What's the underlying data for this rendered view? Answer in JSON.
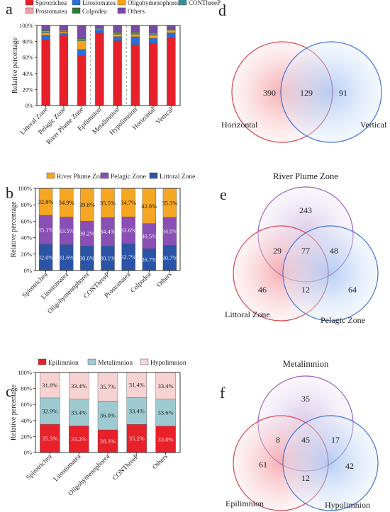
{
  "panel_labels": [
    "a",
    "b",
    "c",
    "d",
    "e",
    "f"
  ],
  "colors": {
    "Spirotrichea": "#e8202a",
    "Litostomatea": "#2a6ed8",
    "Oligohymenophorea": "#f5a31a",
    "CONThreeP": "#3c8f9a",
    "Prostomatea": "#f0a0a8",
    "Colpodea": "#2e7a3a",
    "Others": "#7b4aa8",
    "river": "#f5a623",
    "pelagic": "#8a4fb5",
    "littoral": "#2b54a6",
    "epi": "#e8202a",
    "meta": "#9ecbd1",
    "hypo": "#f7d2d2"
  },
  "chart_data": [
    {
      "id": "a",
      "type": "bar",
      "stacked": true,
      "ylabel": "Relative percentage",
      "ylim": [
        0,
        100
      ],
      "yticks": [
        "0%",
        "20%",
        "40%",
        "60%",
        "80%",
        "100%"
      ],
      "categories": [
        "Littoral Zone",
        "Pelagic Zone",
        "River Plume Zone",
        "Epilimnion",
        "Metalimnion",
        "Hypolimnion",
        "Horizontal",
        "Vertical"
      ],
      "legend": [
        "Spirotrichea",
        "Litostomatea",
        "Oligohymenophorea",
        "CONThreeP",
        "Prostomatea",
        "Colpodea",
        "Others"
      ],
      "series": [
        {
          "name": "Spirotrichea",
          "values": [
            82,
            87,
            62,
            91,
            81,
            76,
            78,
            85
          ]
        },
        {
          "name": "Litostomatea",
          "values": [
            6,
            3,
            8,
            4,
            5,
            10,
            6,
            6
          ]
        },
        {
          "name": "Oligohymenophorea",
          "values": [
            3,
            2,
            11,
            1,
            3,
            3,
            4,
            3
          ]
        },
        {
          "name": "CONThreeP",
          "values": [
            1,
            1,
            1,
            1,
            1,
            1,
            1,
            1
          ]
        },
        {
          "name": "Prostomatea",
          "values": [
            1,
            1,
            1,
            0.5,
            1,
            1,
            1,
            0.5
          ]
        },
        {
          "name": "Colpodea",
          "values": [
            1,
            1,
            1,
            0.5,
            1,
            1,
            1,
            0.5
          ]
        },
        {
          "name": "Others",
          "values": [
            6,
            5,
            16,
            2,
            8,
            8,
            9,
            4
          ]
        }
      ]
    },
    {
      "id": "b",
      "type": "bar",
      "stacked": true,
      "ylabel": "Relative percentage",
      "ylim": [
        0,
        100
      ],
      "yticks": [
        "0%",
        "20%",
        "40%",
        "60%",
        "80%",
        "100%"
      ],
      "categories": [
        "Spirotrichea",
        "Litostomatea",
        "Oligohymenophorea",
        "CONThreeP",
        "Prostomatea",
        "Colpodea",
        "Others"
      ],
      "legend": [
        "River Plume Zone",
        "Pelagic Zone",
        "Littoral Zone"
      ],
      "series": [
        {
          "name": "Littoral Zone",
          "values": [
            32.0,
            31.6,
            30.0,
            30.1,
            32.7,
            26.7,
            30.7
          ],
          "labels": [
            "32.0%",
            "31.6%",
            "30.0%",
            "30.1%",
            "32.7%",
            "26.7%",
            "30.7%"
          ]
        },
        {
          "name": "Pelagic Zone",
          "values": [
            35.1,
            33.5,
            30.2,
            34.4,
            32.6,
            30.5,
            34.0
          ],
          "labels": [
            "35.1%",
            "33.5%",
            "30.2%",
            "34.4%",
            "32.6%",
            "30.5%",
            "34.0%"
          ]
        },
        {
          "name": "River Plume Zone",
          "values": [
            32.8,
            34.9,
            39.8,
            35.5,
            34.7,
            42.8,
            35.3
          ],
          "labels": [
            "32.8%",
            "34.9%",
            "39.8%",
            "35.5%",
            "34.7%",
            "42.8%",
            "35.3%"
          ]
        }
      ]
    },
    {
      "id": "c",
      "type": "bar",
      "stacked": true,
      "ylabel": "Relative percentage",
      "ylim": [
        0,
        100
      ],
      "yticks": [
        "0%",
        "20%",
        "40%",
        "60%",
        "80%",
        "100%"
      ],
      "categories": [
        "Spirotrichea",
        "Litostomatea",
        "Oligohymenophorea",
        "CONThreeP",
        "Others"
      ],
      "legend": [
        "Epilimnion",
        "Metalimnion",
        "Hypolimnion"
      ],
      "series": [
        {
          "name": "Epilimnion",
          "values": [
            35.3,
            33.2,
            28.3,
            35.2,
            33.0
          ],
          "labels": [
            "35.3%",
            "33.2%",
            "28.3%",
            "35.2%",
            "33.0%"
          ]
        },
        {
          "name": "Metalimnion",
          "values": [
            32.9,
            33.4,
            36.0,
            33.4,
            33.6
          ],
          "labels": [
            "32.9%",
            "33.4%",
            "36.0%",
            "33.4%",
            "33.6%"
          ]
        },
        {
          "name": "Hypolimnion",
          "values": [
            31.8,
            33.4,
            35.7,
            31.4,
            33.4
          ],
          "labels": [
            "31.8%",
            "33.4%",
            "35.7%",
            "31.4%",
            "33.4%"
          ]
        }
      ]
    }
  ],
  "venn": {
    "d": {
      "sets": [
        "Horizontal",
        "Vertical"
      ],
      "only_a": "390",
      "both": "129",
      "only_b": "91"
    },
    "e": {
      "sets": [
        "River Plume Zone",
        "Littoral Zone",
        "Pelagic Zone"
      ],
      "only_top": "243",
      "only_left": "46",
      "only_right": "64",
      "top_left": "29",
      "top_right": "48",
      "left_right": "12",
      "all": "77"
    },
    "f": {
      "sets": [
        "Metalimnion",
        "Epilimnion",
        "Hypolimnion"
      ],
      "only_top": "35",
      "only_left": "61",
      "only_right": "42",
      "top_left": "8",
      "top_right": "17",
      "left_right": "12",
      "all": "45"
    }
  }
}
